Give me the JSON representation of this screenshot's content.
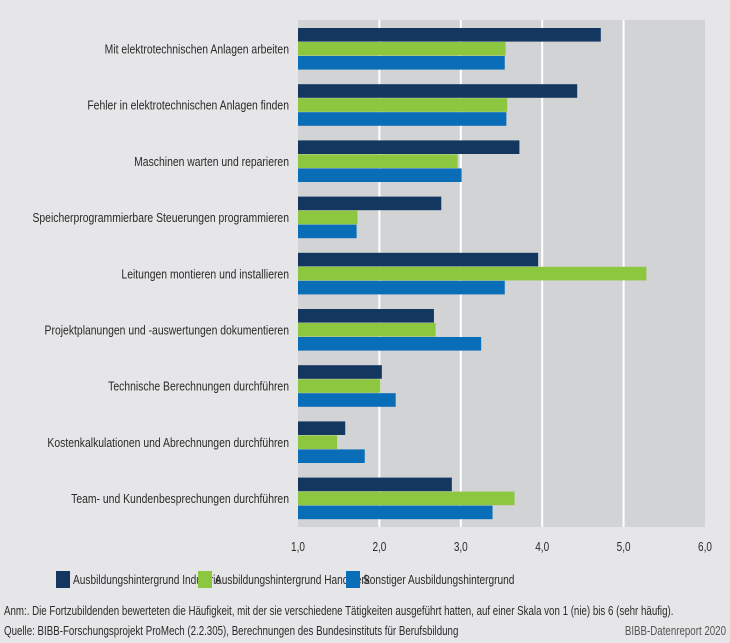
{
  "chart_data": {
    "type": "bar",
    "orientation": "horizontal",
    "categories": [
      "Mit elektrotechnischen Anlagen arbeiten",
      "Fehler in elektrotechnischen Anlagen finden",
      "Maschinen warten und reparieren",
      "Speicherprogrammierbare Steuerungen programmieren",
      "Leitungen montieren und installieren",
      "Projektplanungen und -auswertungen dokumentieren",
      "Technische Berechnungen durchführen",
      "Kostenkalkulationen und Abrechnungen durchführen",
      "Team- und Kundenbesprechungen durchführen"
    ],
    "series": [
      {
        "name": "Ausbildungshintergrund Industrie",
        "color": "#14375f",
        "values": [
          4.72,
          4.43,
          3.72,
          2.76,
          3.95,
          2.67,
          2.03,
          1.58,
          2.89
        ]
      },
      {
        "name": "Ausbildungshintergrund Handwerk",
        "color": "#8dc63f",
        "values": [
          3.55,
          3.57,
          2.96,
          1.73,
          5.28,
          2.69,
          2.01,
          1.48,
          3.66
        ]
      },
      {
        "name": "Sonstiger Ausbildungshintergrund",
        "color": "#0a6db7",
        "values": [
          3.54,
          3.56,
          3.01,
          1.72,
          3.54,
          3.25,
          2.2,
          1.82,
          3.39
        ]
      }
    ],
    "xlim": [
      1,
      6
    ],
    "xticks": [
      1,
      2,
      3,
      4,
      5,
      6
    ],
    "xtick_labels": [
      "1,0",
      "2,0",
      "3,0",
      "4,0",
      "5,0",
      "6,0"
    ],
    "grid": true,
    "legend_position": "bottom",
    "title": "",
    "xlabel": "",
    "ylabel": ""
  },
  "notes": {
    "annotation": "Anm:. Die Fortzubildenden bewerteten die Häufigkeit, mit der sie verschiedene Tätigkeiten ausgeführt hatten, auf einer Skala von 1 (nie) bis 6 (sehr häufig).",
    "source": "Quelle: BIBB-Forschungsprojekt ProMech (2.2.305), Berechnungen des Bundesinstituts für Berufsbildung",
    "publisher": "BIBB-Datenreport 2020"
  },
  "colors": {
    "background": "#e6e6e8",
    "plot_background": "#d2d3d5",
    "grid": "#ffffff"
  }
}
